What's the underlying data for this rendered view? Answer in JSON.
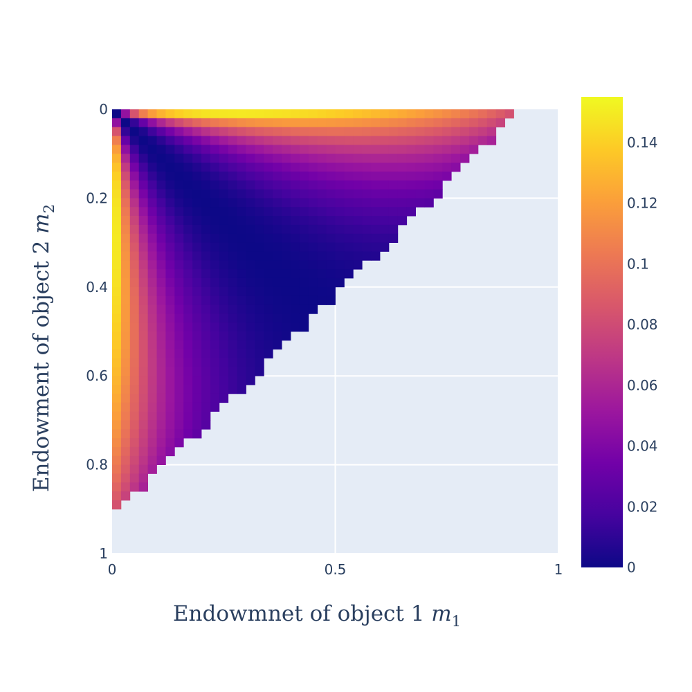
{
  "chart_data": {
    "type": "heatmap",
    "title": "",
    "xlabel": "Endowmnet of object 1",
    "xlabel_symbol": "m",
    "xlabel_subscript": "1",
    "ylabel": "Endowment of object 2",
    "ylabel_symbol": "m",
    "ylabel_subscript": "2",
    "x_ticks": [
      "0",
      "0.5",
      "1"
    ],
    "x_tick_values": [
      0,
      0.5,
      1
    ],
    "y_ticks": [
      "0",
      "0.2",
      "0.4",
      "0.6",
      "0.8",
      "1"
    ],
    "y_tick_values": [
      0,
      0.2,
      0.4,
      0.6,
      0.8,
      1
    ],
    "xlim": [
      0,
      1
    ],
    "ylim": [
      0,
      1
    ],
    "y_reversed": true,
    "grid_step": 0.02,
    "value_rule": "z = 0.155 * ((m1 - m2) / (m1 + m2))^2 * (1 - m1 - m2) * 1.35, defined where m1 + m2 < 0.92",
    "region_limit": 0.92,
    "zlim": [
      0,
      0.155
    ],
    "colorbar_ticks": [
      "0",
      "0.02",
      "0.04",
      "0.06",
      "0.08",
      "0.1",
      "0.12",
      "0.14"
    ],
    "colorbar_tick_values": [
      0,
      0.02,
      0.04,
      0.06,
      0.08,
      0.1,
      0.12,
      0.14
    ],
    "colorscale": "plasma",
    "colors": {
      "plot_background": "#e5ecf6",
      "grid": "#ffffff",
      "text": "#2a3f5f",
      "plasma": [
        "#0d0887",
        "#46039f",
        "#7201a8",
        "#9c179e",
        "#bd3786",
        "#d8576b",
        "#ed7953",
        "#fb9f3a",
        "#fdca26",
        "#f0f921"
      ]
    }
  }
}
